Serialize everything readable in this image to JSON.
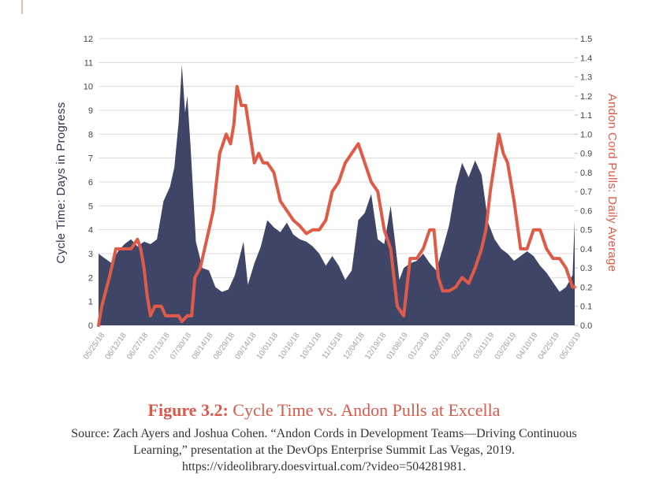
{
  "colors": {
    "cycle_fill": "#3f4566",
    "andon_line": "#e05a48",
    "grid": "#dcdcdc",
    "accent": "#f0b8a8"
  },
  "chart_data": {
    "type": "area",
    "title": "",
    "xlabel": "",
    "y_left_label": "Cycle Time: Days in Progress",
    "y_right_label": "Andon Cord Pulls: Daily Average",
    "y_left_range": [
      0,
      12
    ],
    "y_right_range": [
      0,
      1.5
    ],
    "y_left_ticks": [
      "0",
      "1",
      "2",
      "3",
      "4",
      "5",
      "6",
      "7",
      "8",
      "9",
      "10",
      "11",
      "12"
    ],
    "y_right_ticks": [
      "0.0",
      "0.1",
      "0.2",
      "0.3",
      "0.4",
      "0.5",
      "0.6",
      "0.7",
      "0.8",
      "0.9",
      "1.0",
      "1.1",
      "1.2",
      "1.3",
      "1.4",
      "1.5"
    ],
    "x_tick_labels": [
      "05/25/18",
      "06/12/18",
      "06/27/18",
      "07/13/18",
      "07/30/18",
      "08/14/18",
      "08/29/18",
      "09/14/18",
      "10/01/18",
      "10/16/18",
      "10/31/18",
      "11/15/18",
      "12/04/18",
      "12/19/18",
      "01/08/19",
      "01/23/19",
      "02/07/19",
      "02/22/19",
      "03/11/19",
      "03/26/19",
      "04/10/19",
      "04/25/19",
      "05/10/19"
    ],
    "grid": true,
    "series": [
      {
        "name": "Cycle Time: Days in Progress",
        "kind": "area",
        "axis": "left",
        "points": [
          [
            0,
            3
          ],
          [
            0.3,
            2.8
          ],
          [
            0.6,
            2.6
          ],
          [
            0.9,
            3.1
          ],
          [
            1.2,
            3.4
          ],
          [
            1.5,
            3.6
          ],
          [
            1.8,
            3.3
          ],
          [
            2.1,
            3.5
          ],
          [
            2.4,
            3.4
          ],
          [
            2.7,
            3.6
          ],
          [
            3.0,
            5.2
          ],
          [
            3.3,
            5.8
          ],
          [
            3.5,
            6.6
          ],
          [
            3.7,
            8.5
          ],
          [
            3.85,
            10.9
          ],
          [
            4.0,
            8.9
          ],
          [
            4.1,
            9.6
          ],
          [
            4.25,
            7.5
          ],
          [
            4.5,
            3.5
          ],
          [
            4.8,
            2.4
          ],
          [
            5.1,
            2.3
          ],
          [
            5.4,
            1.6
          ],
          [
            5.7,
            1.4
          ],
          [
            6.0,
            1.5
          ],
          [
            6.3,
            2.1
          ],
          [
            6.5,
            2.8
          ],
          [
            6.7,
            3.5
          ],
          [
            6.9,
            1.7
          ],
          [
            7.2,
            2.6
          ],
          [
            7.5,
            3.3
          ],
          [
            7.8,
            4.4
          ],
          [
            8.1,
            4.1
          ],
          [
            8.4,
            3.9
          ],
          [
            8.7,
            4.3
          ],
          [
            9.0,
            3.8
          ],
          [
            9.3,
            3.6
          ],
          [
            9.6,
            3.5
          ],
          [
            9.9,
            3.3
          ],
          [
            10.2,
            3.0
          ],
          [
            10.5,
            2.5
          ],
          [
            10.8,
            2.9
          ],
          [
            11.1,
            2.5
          ],
          [
            11.4,
            1.9
          ],
          [
            11.7,
            2.3
          ],
          [
            12.0,
            4.4
          ],
          [
            12.3,
            4.7
          ],
          [
            12.6,
            5.5
          ],
          [
            12.9,
            3.6
          ],
          [
            13.2,
            3.4
          ],
          [
            13.5,
            5.0
          ],
          [
            13.7,
            3.5
          ],
          [
            13.9,
            1.9
          ],
          [
            14.1,
            2.4
          ],
          [
            14.4,
            2.6
          ],
          [
            14.7,
            2.7
          ],
          [
            15.0,
            3.0
          ],
          [
            15.3,
            2.6
          ],
          [
            15.6,
            2.3
          ],
          [
            15.9,
            3.2
          ],
          [
            16.2,
            4.2
          ],
          [
            16.5,
            5.8
          ],
          [
            16.8,
            6.8
          ],
          [
            17.1,
            6.2
          ],
          [
            17.4,
            6.9
          ],
          [
            17.7,
            6.3
          ],
          [
            18.0,
            4.3
          ],
          [
            18.3,
            3.6
          ],
          [
            18.6,
            3.2
          ],
          [
            18.9,
            3.0
          ],
          [
            19.2,
            2.7
          ],
          [
            19.5,
            2.9
          ],
          [
            19.8,
            3.1
          ],
          [
            20.1,
            2.9
          ],
          [
            20.4,
            2.5
          ],
          [
            20.7,
            2.2
          ],
          [
            21.0,
            1.8
          ],
          [
            21.3,
            1.4
          ],
          [
            21.6,
            1.6
          ],
          [
            21.9,
            2.1
          ],
          [
            22.0,
            4.4
          ]
        ]
      },
      {
        "name": "Andon Cord Pulls: Daily Average",
        "kind": "line",
        "axis": "right",
        "points": [
          [
            0,
            0
          ],
          [
            0.15,
            0.1
          ],
          [
            0.5,
            0.25
          ],
          [
            0.8,
            0.4
          ],
          [
            1.2,
            0.4
          ],
          [
            1.5,
            0.4
          ],
          [
            1.8,
            0.45
          ],
          [
            1.95,
            0.4
          ],
          [
            2.1,
            0.3
          ],
          [
            2.25,
            0.15
          ],
          [
            2.4,
            0.05
          ],
          [
            2.6,
            0.1
          ],
          [
            2.9,
            0.1
          ],
          [
            3.1,
            0.05
          ],
          [
            3.4,
            0.05
          ],
          [
            3.7,
            0.05
          ],
          [
            3.85,
            0.02
          ],
          [
            4.1,
            0.05
          ],
          [
            4.3,
            0.05
          ],
          [
            4.45,
            0.25
          ],
          [
            4.7,
            0.3
          ],
          [
            5.0,
            0.45
          ],
          [
            5.3,
            0.6
          ],
          [
            5.6,
            0.9
          ],
          [
            5.9,
            1.0
          ],
          [
            6.1,
            0.95
          ],
          [
            6.25,
            1.05
          ],
          [
            6.4,
            1.25
          ],
          [
            6.6,
            1.15
          ],
          [
            6.8,
            1.15
          ],
          [
            7.0,
            1.0
          ],
          [
            7.2,
            0.85
          ],
          [
            7.4,
            0.9
          ],
          [
            7.6,
            0.85
          ],
          [
            7.8,
            0.85
          ],
          [
            8.1,
            0.8
          ],
          [
            8.4,
            0.65
          ],
          [
            8.7,
            0.6
          ],
          [
            9.0,
            0.55
          ],
          [
            9.3,
            0.52
          ],
          [
            9.6,
            0.48
          ],
          [
            9.9,
            0.5
          ],
          [
            10.2,
            0.5
          ],
          [
            10.5,
            0.55
          ],
          [
            10.8,
            0.7
          ],
          [
            11.1,
            0.75
          ],
          [
            11.4,
            0.85
          ],
          [
            11.7,
            0.9
          ],
          [
            12.0,
            0.95
          ],
          [
            12.3,
            0.85
          ],
          [
            12.6,
            0.75
          ],
          [
            12.9,
            0.7
          ],
          [
            13.2,
            0.5
          ],
          [
            13.5,
            0.4
          ],
          [
            13.8,
            0.1
          ],
          [
            14.1,
            0.05
          ],
          [
            14.4,
            0.35
          ],
          [
            14.7,
            0.35
          ],
          [
            15.0,
            0.4
          ],
          [
            15.3,
            0.5
          ],
          [
            15.5,
            0.5
          ],
          [
            15.7,
            0.25
          ],
          [
            15.9,
            0.18
          ],
          [
            16.2,
            0.18
          ],
          [
            16.5,
            0.2
          ],
          [
            16.8,
            0.25
          ],
          [
            17.1,
            0.22
          ],
          [
            17.4,
            0.3
          ],
          [
            17.7,
            0.4
          ],
          [
            17.9,
            0.5
          ],
          [
            18.1,
            0.7
          ],
          [
            18.3,
            0.85
          ],
          [
            18.5,
            1.0
          ],
          [
            18.7,
            0.9
          ],
          [
            18.9,
            0.85
          ],
          [
            19.2,
            0.65
          ],
          [
            19.5,
            0.4
          ],
          [
            19.8,
            0.4
          ],
          [
            20.1,
            0.5
          ],
          [
            20.4,
            0.5
          ],
          [
            20.7,
            0.4
          ],
          [
            21.0,
            0.35
          ],
          [
            21.3,
            0.35
          ],
          [
            21.6,
            0.3
          ],
          [
            21.9,
            0.2
          ],
          [
            22.0,
            0.2
          ]
        ]
      }
    ]
  },
  "caption": {
    "figure_number": "Figure 3.2:",
    "figure_title": " Cycle Time vs. Andon Pulls at Excella",
    "source": "Source: Zach Ayers and Joshua Cohen. “Andon Cords in Development Teams—Driving Continuous Learning,” presentation at the DevOps Enterprise Summit Las Vegas, 2019. https://videolibrary.doesvirtual.com/?video=504281981."
  }
}
